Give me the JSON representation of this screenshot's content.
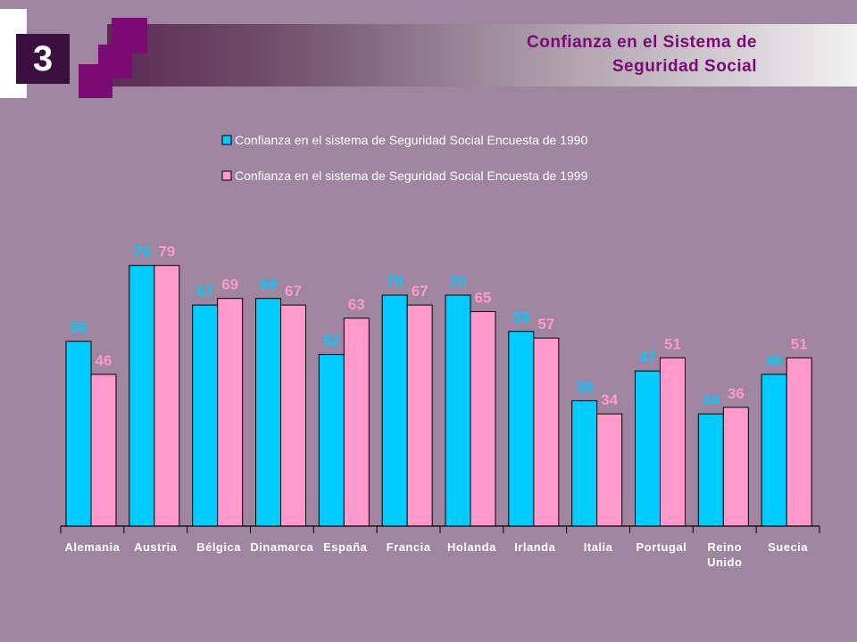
{
  "slide": {
    "number": "3",
    "title_line1": "Confianza en el Sistema de",
    "title_line2": "Seguridad Social"
  },
  "colors": {
    "series1990": "#00ccff",
    "series1999": "#ff99cc",
    "label1990": "#00ccff",
    "label1999": "#ff99cc",
    "background": "#9f859f",
    "title": "#7b0a75"
  },
  "chart_data": {
    "type": "bar",
    "categories": [
      [
        "Alemania"
      ],
      [
        "Austria"
      ],
      [
        "Bélgica"
      ],
      [
        "Dinamarca"
      ],
      [
        "España"
      ],
      [
        "Francia"
      ],
      [
        "Holanda"
      ],
      [
        "Irlanda"
      ],
      [
        "Italia"
      ],
      [
        "Portugal"
      ],
      [
        "Reino",
        "Unido"
      ],
      [
        "Suecia"
      ]
    ],
    "series": [
      {
        "name": "Confianza en el sistema de Seguridad Social Encuesta de 1990",
        "values": [
          56,
          79,
          67,
          69,
          52,
          70,
          70,
          59,
          38,
          47,
          34,
          46
        ]
      },
      {
        "name": "Confianza en el sistema de Seguridad Social Encuesta de 1999",
        "values": [
          46,
          79,
          69,
          67,
          63,
          67,
          65,
          57,
          34,
          51,
          36,
          51
        ]
      }
    ],
    "ylim": [
      0,
      100
    ],
    "legend_position": "top",
    "grid": false,
    "title": "",
    "xlabel": "",
    "ylabel": ""
  }
}
